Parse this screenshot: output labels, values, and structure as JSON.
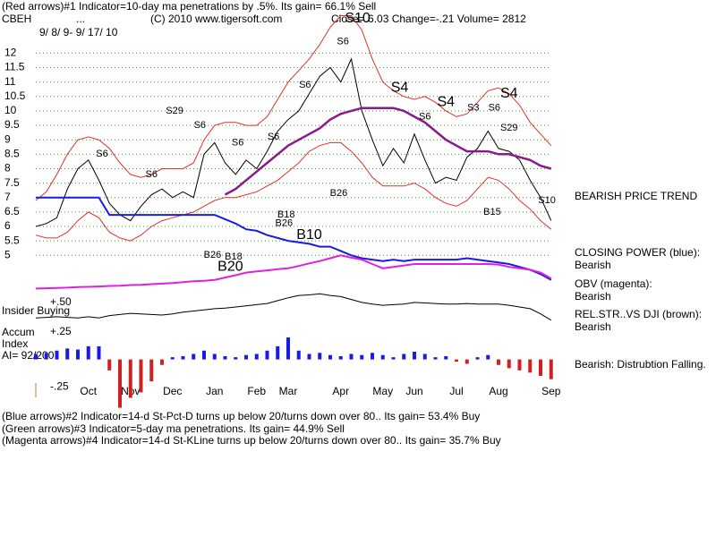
{
  "header_lines": [
    "(Red arrows)#1 Indicator=10-day ma penetrations by .5%.  Its gain= 66.1% Sell",
    "CBEH",
    "...",
    "(C) 2010 www.tigersoft.com",
    "Close=  6.03   Change=-.21  Volume= 2812",
    "9/ 8/ 9- 9/ 17/ 10"
  ],
  "left_labels": [
    "Insider Buying",
    "Accum",
    "Index",
    "AI= 92/200"
  ],
  "right_labels": [
    "BEARISH PRICE TREND",
    "CLOSING POWER (blue):",
    "Bearish",
    "OBV (magenta):",
    "Bearish",
    "REL.STR..VS DJI (brown):",
    "Bearish",
    "Bearish:  Distrubtion Falling."
  ],
  "footer_lines": [
    "(Blue arrows)#2 Indicator=14-d St-Pct-D turns up below 20/turns down over 80..  Its gain= 53.4% Buy",
    "(Green arrows)#3 Indicator=5-day ma penetrations.  Its gain= 44.9% Sell",
    "(Magenta arrows)#4 Indicator=14-d St-KLine turns up below 20/turns down over 80..  Its gain= 35.7% Buy"
  ],
  "chart_data": [
    {
      "type": "line",
      "categories": [
        null,
        null,
        null,
        null,
        null,
        "Oct",
        null,
        null,
        null,
        "Nov",
        null,
        null,
        null,
        "Dec",
        null,
        null,
        null,
        "Jan",
        null,
        null,
        null,
        "Feb",
        null,
        null,
        "Mar",
        null,
        null,
        null,
        null,
        "Apr",
        null,
        null,
        null,
        "May",
        null,
        null,
        "Jun",
        null,
        null,
        null,
        "Jul",
        null,
        null,
        null,
        "Aug",
        null,
        null,
        null,
        null,
        "Sep"
      ],
      "ylim": [
        3.8,
        13.5
      ],
      "yticks": [
        5,
        5.5,
        6,
        6.5,
        7,
        7.5,
        8,
        8.5,
        9,
        9.5,
        10,
        10.5,
        11,
        11.5,
        12
      ],
      "grid": true,
      "grid_color": "#2a9d2a",
      "series": [
        {
          "name": "Upper band",
          "color": "#e0302a",
          "values": [
            6.9,
            7.2,
            7.8,
            8.5,
            9.0,
            9.1,
            9.0,
            8.7,
            8.2,
            7.8,
            7.7,
            7.8,
            8.0,
            8.0,
            8.0,
            8.2,
            9.0,
            9.5,
            9.6,
            9.6,
            9.5,
            9.5,
            9.8,
            10.4,
            11.0,
            11.4,
            11.8,
            12.3,
            12.9,
            13.3,
            13.3,
            12.8,
            11.8,
            11.0,
            10.7,
            10.5,
            10.4,
            10.5,
            10.3,
            10.0,
            9.8,
            9.9,
            10.3,
            10.7,
            10.8,
            10.6,
            10.2,
            9.6,
            9.2,
            8.8
          ]
        },
        {
          "name": "Lower band",
          "color": "#e0302a",
          "values": [
            5.7,
            5.6,
            5.6,
            5.8,
            6.2,
            6.5,
            6.3,
            5.8,
            5.6,
            5.5,
            5.7,
            6.0,
            6.2,
            6.3,
            6.4,
            6.5,
            6.7,
            6.9,
            7.0,
            7.0,
            7.1,
            7.2,
            7.4,
            7.6,
            7.9,
            8.2,
            8.6,
            8.8,
            8.9,
            8.9,
            8.6,
            8.2,
            7.7,
            7.4,
            7.4,
            7.4,
            7.5,
            7.3,
            7.0,
            6.8,
            6.7,
            6.9,
            7.3,
            7.7,
            7.6,
            7.3,
            6.9,
            6.6,
            6.2,
            5.9
          ]
        },
        {
          "name": "Close",
          "color": "#000000",
          "values": [
            6.0,
            6.1,
            6.3,
            7.3,
            8.0,
            8.3,
            7.6,
            6.8,
            6.4,
            6.2,
            6.7,
            7.1,
            7.3,
            7.0,
            7.2,
            7.0,
            8.5,
            8.9,
            8.2,
            7.8,
            8.3,
            8.0,
            8.6,
            9.3,
            9.7,
            10.0,
            10.6,
            11.2,
            11.5,
            11.0,
            11.8,
            10.0,
            9.0,
            8.1,
            8.7,
            8.2,
            9.2,
            8.3,
            7.5,
            7.7,
            7.6,
            8.4,
            8.7,
            9.3,
            8.7,
            8.6,
            8.3,
            7.6,
            7.0,
            6.2
          ]
        },
        {
          "name": "21-day MA",
          "color": "#8a1a8a",
          "values": [
            null,
            null,
            null,
            null,
            null,
            null,
            null,
            null,
            null,
            null,
            null,
            null,
            null,
            null,
            null,
            null,
            null,
            null,
            7.1,
            7.3,
            7.6,
            7.9,
            8.2,
            8.5,
            8.8,
            9.0,
            9.2,
            9.4,
            9.7,
            9.9,
            10.0,
            10.1,
            10.1,
            10.1,
            10.1,
            10.0,
            9.8,
            9.6,
            9.3,
            9.0,
            8.8,
            8.6,
            8.6,
            8.6,
            8.5,
            8.5,
            8.4,
            8.3,
            8.1,
            8.0
          ]
        },
        {
          "name": "Closing Power",
          "color": "#1a1ae6",
          "values": [
            7.0,
            7.0,
            7.0,
            7.0,
            7.0,
            7.0,
            7.0,
            6.4,
            6.4,
            6.4,
            6.4,
            6.4,
            6.4,
            6.4,
            6.4,
            6.4,
            6.4,
            6.4,
            6.25,
            6.1,
            5.9,
            5.85,
            5.7,
            5.6,
            5.5,
            5.45,
            5.4,
            5.3,
            5.3,
            5.15,
            5.0,
            4.9,
            4.85,
            4.8,
            4.85,
            4.8,
            4.85,
            4.85,
            4.85,
            4.85,
            4.85,
            4.9,
            4.85,
            4.8,
            4.75,
            4.7,
            4.6,
            4.5,
            4.35,
            4.15
          ]
        },
        {
          "name": "OBV",
          "color": "#e020e0",
          "values": [
            3.85,
            3.86,
            3.87,
            3.88,
            3.9,
            3.91,
            3.92,
            3.94,
            3.95,
            3.97,
            3.98,
            4.0,
            4.02,
            4.04,
            4.07,
            4.1,
            4.12,
            4.15,
            4.23,
            4.31,
            4.4,
            4.44,
            4.48,
            4.52,
            4.55,
            4.63,
            4.72,
            4.8,
            4.9,
            5.0,
            4.92,
            4.85,
            4.7,
            4.55,
            4.6,
            4.65,
            4.7,
            4.7,
            4.7,
            4.7,
            4.7,
            4.7,
            4.7,
            4.7,
            4.68,
            4.6,
            4.55,
            4.5,
            4.4,
            4.2
          ]
        }
      ],
      "annotations": [
        {
          "label": "S10",
          "x": 30.6,
          "y": 13.2,
          "style": "large"
        },
        {
          "label": "S4",
          "x": 34.6,
          "y": 10.8,
          "style": "large"
        },
        {
          "label": "S4",
          "x": 39,
          "y": 10.3,
          "style": "large"
        },
        {
          "label": "S4",
          "x": 45,
          "y": 10.6,
          "style": "large"
        },
        {
          "label": "B20",
          "x": 18.5,
          "y": 4.6,
          "style": "large"
        },
        {
          "label": "B10",
          "x": 26,
          "y": 5.7,
          "style": "large"
        },
        {
          "label": "S6",
          "x": 6.3,
          "y": 8.5,
          "style": "small"
        },
        {
          "label": "S6",
          "x": 11,
          "y": 7.8,
          "style": "small"
        },
        {
          "label": "S29",
          "x": 13.2,
          "y": 10.0,
          "style": "small"
        },
        {
          "label": "S6",
          "x": 15.6,
          "y": 9.5,
          "style": "small"
        },
        {
          "label": "S6",
          "x": 19.2,
          "y": 8.9,
          "style": "small"
        },
        {
          "label": "S6",
          "x": 22.6,
          "y": 9.1,
          "style": "small"
        },
        {
          "label": "S6",
          "x": 25.6,
          "y": 10.9,
          "style": "small"
        },
        {
          "label": "S6",
          "x": 29.2,
          "y": 12.4,
          "style": "small"
        },
        {
          "label": "S6",
          "x": 37,
          "y": 9.8,
          "style": "small"
        },
        {
          "label": "S3",
          "x": 41.6,
          "y": 10.1,
          "style": "small"
        },
        {
          "label": "S6",
          "x": 43.6,
          "y": 10.1,
          "style": "small"
        },
        {
          "label": "S29",
          "x": 45,
          "y": 9.4,
          "style": "small"
        },
        {
          "label": "S10",
          "x": 48.6,
          "y": 6.9,
          "style": "small"
        },
        {
          "label": "B26",
          "x": 28.8,
          "y": 7.15,
          "style": "small"
        },
        {
          "label": "B18",
          "x": 23.8,
          "y": 6.4,
          "style": "small"
        },
        {
          "label": "B26",
          "x": 23.6,
          "y": 6.1,
          "style": "small"
        },
        {
          "label": "B15",
          "x": 43.4,
          "y": 6.5,
          "style": "small"
        },
        {
          "label": "B26",
          "x": 16.8,
          "y": 5.0,
          "style": "small"
        },
        {
          "label": "B18",
          "x": 18.8,
          "y": 4.95,
          "style": "small"
        }
      ]
    },
    {
      "type": "line",
      "ylim": [
        0,
        0.7
      ],
      "yticks": [
        {
          "value": 0.5,
          "label": "+.50"
        }
      ],
      "series": [
        {
          "name": "Insider Buying",
          "color": "#000000",
          "values": [
            0.23,
            0.24,
            0.25,
            0.24,
            0.23,
            0.25,
            0.23,
            0.27,
            0.29,
            0.31,
            0.3,
            0.29,
            0.28,
            0.3,
            0.33,
            0.35,
            0.37,
            0.39,
            0.4,
            0.42,
            0.44,
            0.46,
            0.48,
            0.53,
            0.58,
            0.62,
            0.63,
            0.65,
            0.62,
            0.6,
            0.55,
            0.5,
            0.47,
            0.45,
            0.46,
            0.47,
            0.5,
            0.49,
            0.48,
            0.47,
            0.47,
            0.48,
            0.47,
            0.47,
            0.47,
            0.45,
            0.42,
            0.39,
            0.3,
            0.19
          ]
        }
      ]
    },
    {
      "type": "bar",
      "ylim": [
        -0.45,
        0.3
      ],
      "yticks": [
        {
          "value": 0.25,
          "label": "+.25"
        },
        {
          "value": -0.25,
          "label": "-.25"
        }
      ],
      "positive_color": "#1a1ae6",
      "negative_color": "#d02020",
      "values": [
        0.05,
        0.06,
        0.08,
        0.1,
        0.09,
        0.12,
        0.12,
        -0.1,
        -0.44,
        -0.35,
        -0.3,
        -0.2,
        -0.05,
        0.02,
        0.03,
        0.05,
        0.08,
        0.05,
        0.03,
        0.02,
        0.04,
        0.05,
        0.08,
        0.12,
        0.2,
        0.08,
        0.05,
        0.06,
        0.04,
        0.03,
        0.05,
        0.04,
        0.06,
        0.04,
        0.02,
        0.05,
        0.07,
        0.05,
        0.02,
        0.03,
        -0.02,
        -0.04,
        0.02,
        0.04,
        -0.05,
        -0.08,
        -0.1,
        -0.12,
        -0.15,
        -0.18
      ]
    }
  ]
}
